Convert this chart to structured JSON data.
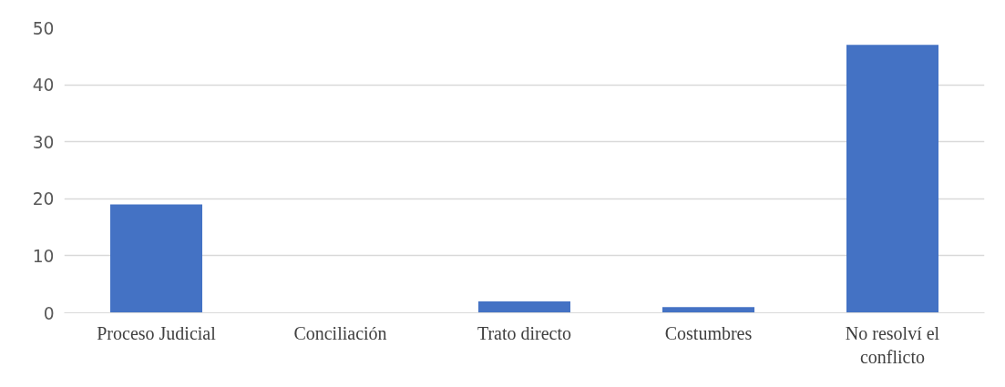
{
  "chart_data": {
    "type": "bar",
    "categories": [
      "Proceso Judicial",
      "Conciliación",
      "Trato directo",
      "Costumbres",
      "No resolví el conflicto"
    ],
    "values": [
      19,
      0,
      2,
      1,
      47
    ],
    "color": "#4472c4",
    "ylim": [
      0,
      50
    ],
    "yticks": [
      0,
      10,
      20,
      30,
      40,
      50
    ],
    "grid": "y"
  }
}
